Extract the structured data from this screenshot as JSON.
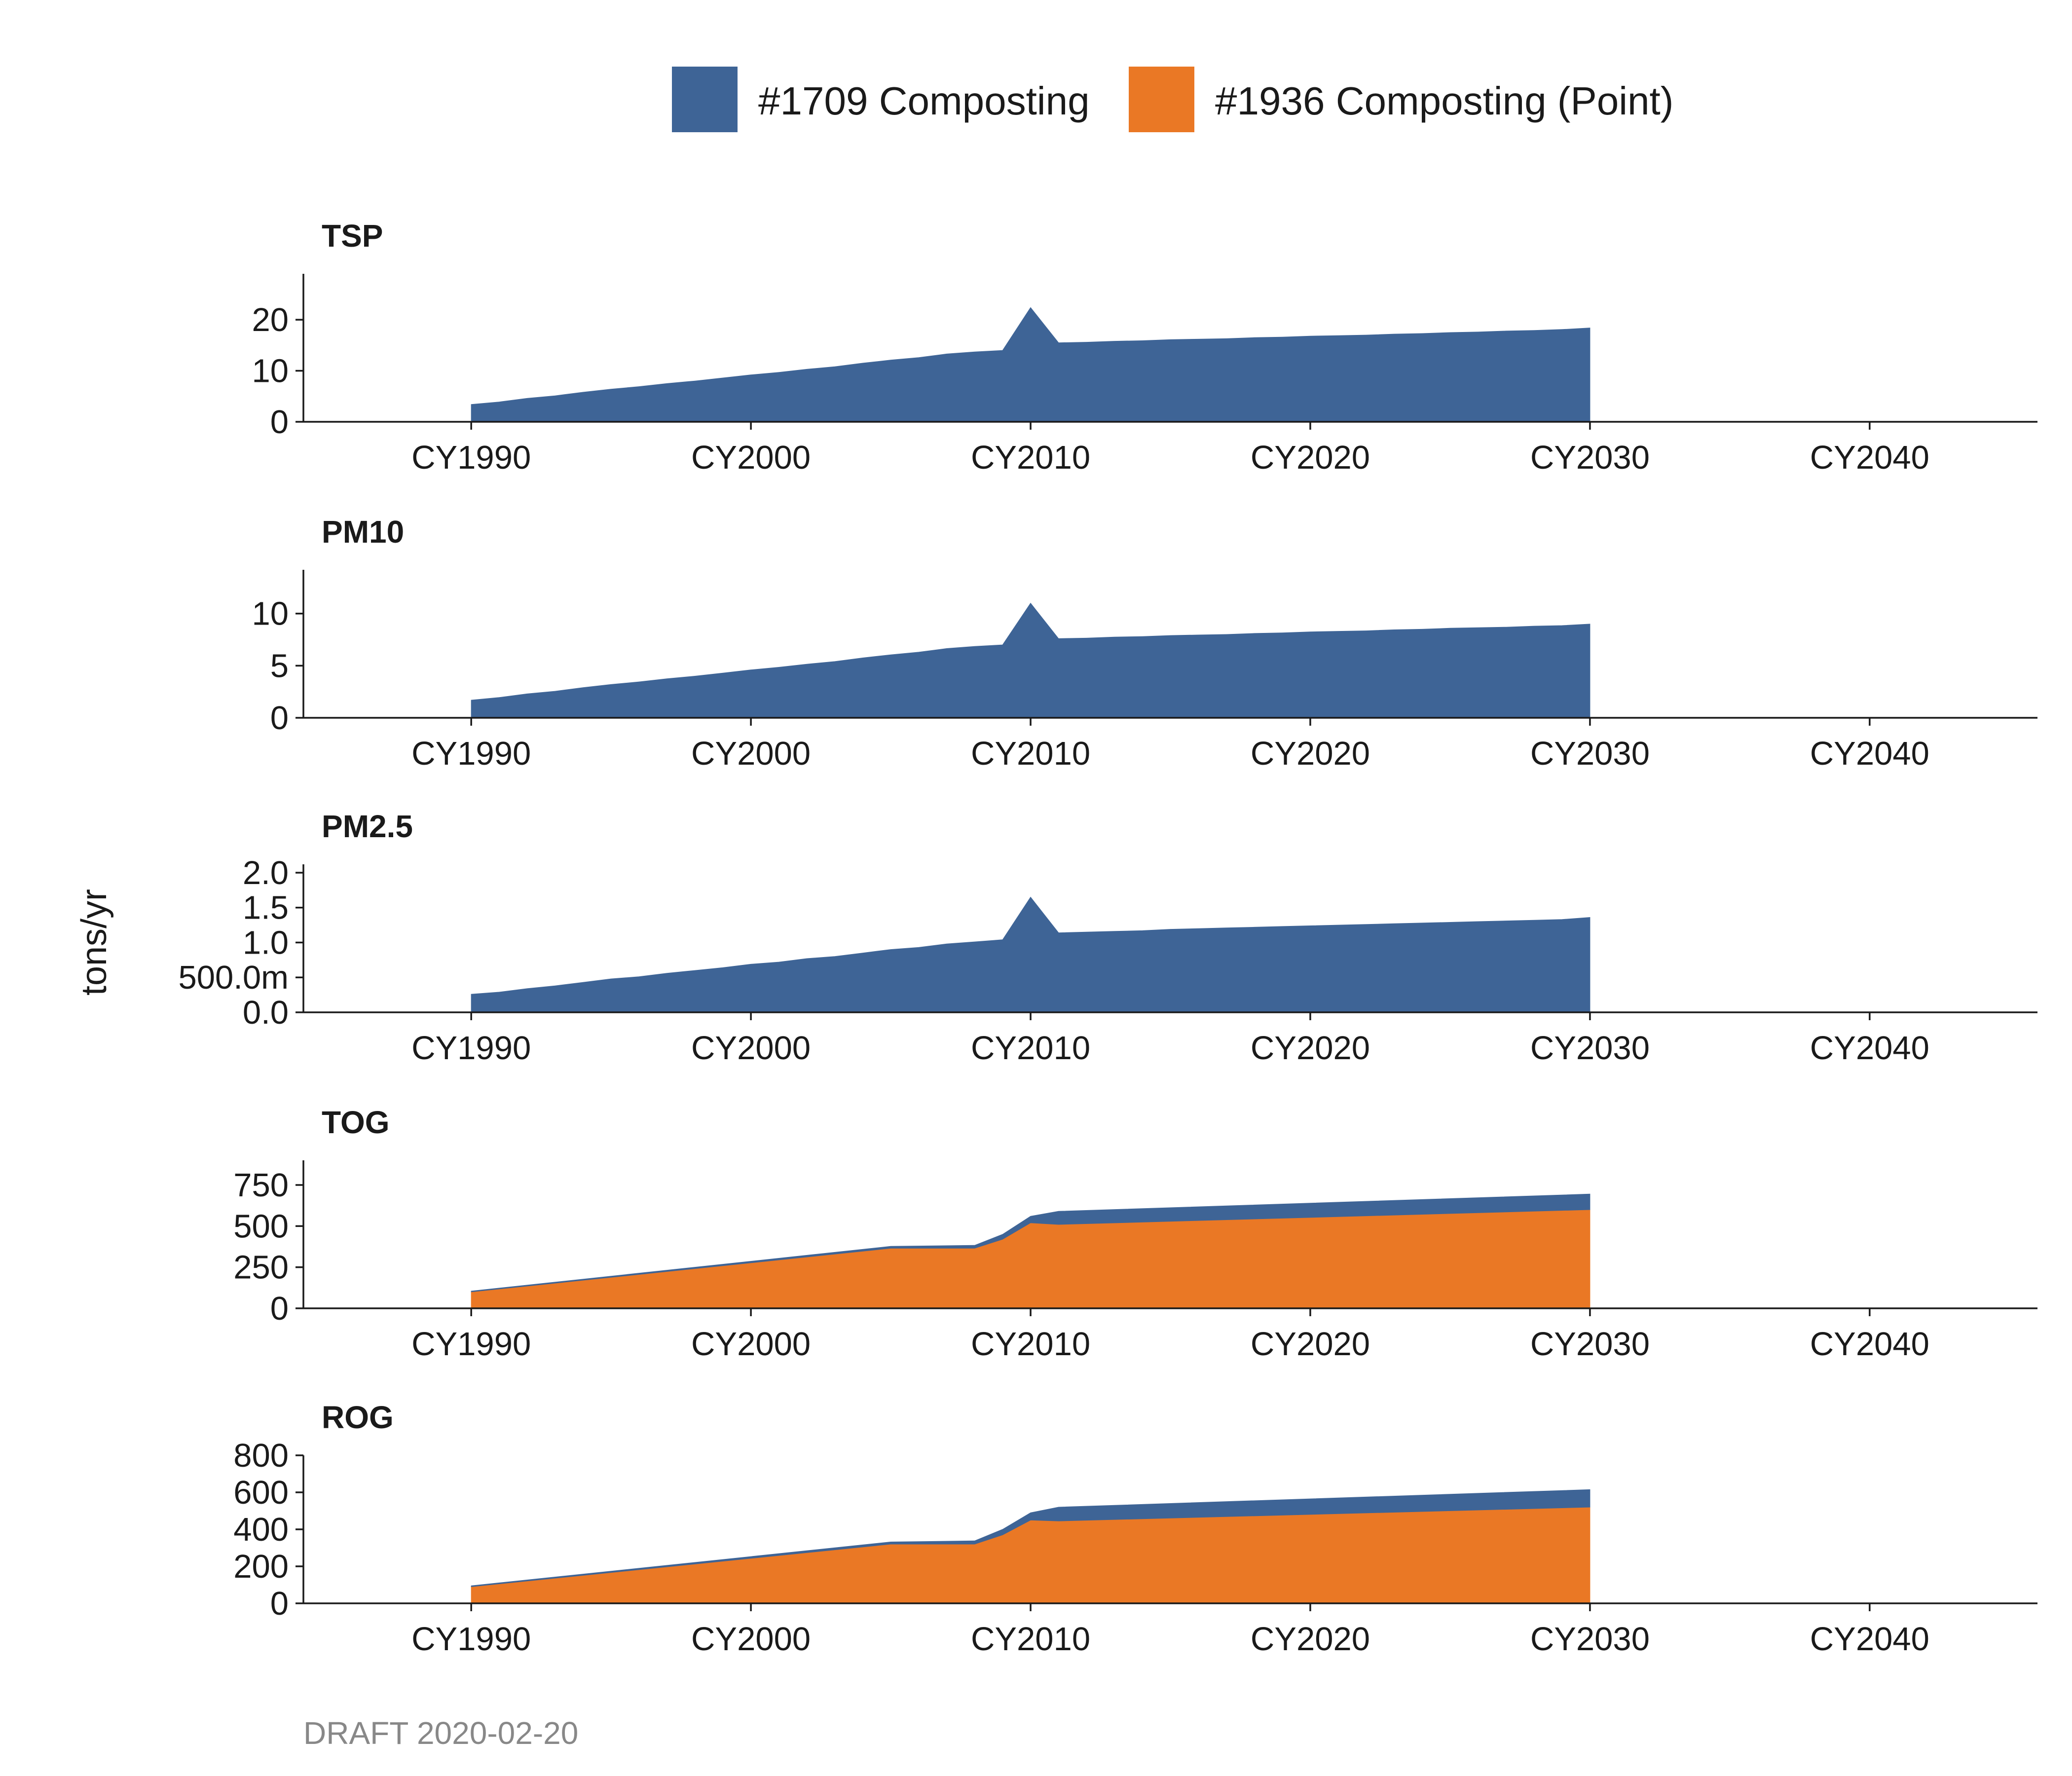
{
  "chart_data": {
    "type": "area",
    "stacked": true,
    "legend": {
      "position": "top",
      "entries": [
        {
          "name": "#1709 Composting",
          "color": "#3E6496"
        },
        {
          "name": "#1936 Composting (Point)",
          "color": "#EA7825"
        }
      ]
    },
    "ylabel": "tons/yr",
    "caption": "DRAFT 2020-02-20",
    "x_ticks": [
      {
        "value": 1990,
        "label": "CY1990"
      },
      {
        "value": 2000,
        "label": "CY2000"
      },
      {
        "value": 2010,
        "label": "CY2010"
      },
      {
        "value": 2020,
        "label": "CY2020"
      },
      {
        "value": 2030,
        "label": "CY2030"
      },
      {
        "value": 2040,
        "label": "CY2040"
      }
    ],
    "xlim": [
      1984,
      2046
    ],
    "panels": [
      {
        "title": "TSP",
        "ylim": [
          0,
          29
        ],
        "y_ticks": [
          {
            "value": 0,
            "label": "0"
          },
          {
            "value": 10,
            "label": "10"
          },
          {
            "value": 20,
            "label": "20"
          }
        ],
        "series": [
          {
            "name": "#1709 Composting",
            "x": [
              1990,
              1991,
              1992,
              1993,
              1994,
              1995,
              1996,
              1997,
              1998,
              1999,
              2000,
              2001,
              2002,
              2003,
              2004,
              2005,
              2006,
              2007,
              2008,
              2009,
              2010,
              2011,
              2012,
              2013,
              2014,
              2015,
              2016,
              2017,
              2018,
              2019,
              2020,
              2021,
              2022,
              2023,
              2024,
              2025,
              2026,
              2027,
              2028,
              2029,
              2030
            ],
            "values": [
              3.4,
              3.9,
              4.6,
              5.1,
              5.8,
              6.4,
              6.9,
              7.5,
              8.0,
              8.6,
              9.2,
              9.7,
              10.3,
              10.8,
              11.5,
              12.1,
              12.6,
              13.3,
              13.7,
              14.0,
              22.4,
              15.5,
              15.6,
              15.8,
              15.9,
              16.1,
              16.2,
              16.3,
              16.5,
              16.6,
              16.8,
              16.9,
              17.0,
              17.2,
              17.3,
              17.5,
              17.6,
              17.8,
              17.9,
              18.1,
              18.4
            ]
          },
          {
            "name": "#1936 Composting (Point)",
            "x": [
              1990,
              2030
            ],
            "values": [
              0,
              0
            ]
          }
        ]
      },
      {
        "title": "PM10",
        "ylim": [
          0,
          14.2
        ],
        "y_ticks": [
          {
            "value": 0,
            "label": "0"
          },
          {
            "value": 5,
            "label": "5"
          },
          {
            "value": 10,
            "label": "10"
          }
        ],
        "series": [
          {
            "name": "#1709 Composting",
            "x": [
              1990,
              1991,
              1992,
              1993,
              1994,
              1995,
              1996,
              1997,
              1998,
              1999,
              2000,
              2001,
              2002,
              2003,
              2004,
              2005,
              2006,
              2007,
              2008,
              2009,
              2010,
              2011,
              2012,
              2013,
              2014,
              2015,
              2016,
              2017,
              2018,
              2019,
              2020,
              2021,
              2022,
              2023,
              2024,
              2025,
              2026,
              2027,
              2028,
              2029,
              2030
            ],
            "values": [
              1.7,
              1.95,
              2.3,
              2.55,
              2.9,
              3.2,
              3.45,
              3.75,
              4.0,
              4.3,
              4.6,
              4.85,
              5.15,
              5.4,
              5.75,
              6.05,
              6.3,
              6.65,
              6.85,
              7.0,
              11.0,
              7.6,
              7.65,
              7.75,
              7.8,
              7.9,
              7.95,
              8.0,
              8.1,
              8.15,
              8.25,
              8.3,
              8.35,
              8.45,
              8.5,
              8.6,
              8.65,
              8.7,
              8.8,
              8.85,
              9.0
            ]
          },
          {
            "name": "#1936 Composting (Point)",
            "x": [
              1990,
              2030
            ],
            "values": [
              0,
              0
            ]
          }
        ]
      },
      {
        "title": "PM2.5",
        "ylim": [
          0,
          2.12
        ],
        "y_ticks": [
          {
            "value": 0,
            "label": "0.0"
          },
          {
            "value": 0.5,
            "label": "500.0m"
          },
          {
            "value": 1.0,
            "label": "1.0"
          },
          {
            "value": 1.5,
            "label": "1.5"
          },
          {
            "value": 2.0,
            "label": "2.0"
          }
        ],
        "series": [
          {
            "name": "#1709 Composting",
            "x": [
              1990,
              1991,
              1992,
              1993,
              1994,
              1995,
              1996,
              1997,
              1998,
              1999,
              2000,
              2001,
              2002,
              2003,
              2004,
              2005,
              2006,
              2007,
              2008,
              2009,
              2010,
              2011,
              2012,
              2013,
              2014,
              2015,
              2016,
              2017,
              2018,
              2019,
              2020,
              2021,
              2022,
              2023,
              2024,
              2025,
              2026,
              2027,
              2028,
              2029,
              2030
            ],
            "values": [
              0.26,
              0.29,
              0.34,
              0.38,
              0.43,
              0.48,
              0.51,
              0.56,
              0.6,
              0.64,
              0.69,
              0.72,
              0.77,
              0.8,
              0.85,
              0.9,
              0.93,
              0.98,
              1.01,
              1.04,
              1.65,
              1.14,
              1.15,
              1.16,
              1.17,
              1.19,
              1.2,
              1.21,
              1.22,
              1.23,
              1.24,
              1.25,
              1.26,
              1.27,
              1.28,
              1.29,
              1.3,
              1.31,
              1.32,
              1.33,
              1.36
            ]
          },
          {
            "name": "#1936 Composting (Point)",
            "x": [
              1990,
              2030
            ],
            "values": [
              0,
              0
            ]
          }
        ]
      },
      {
        "title": "TOG",
        "ylim": [
          0,
          900
        ],
        "y_ticks": [
          {
            "value": 0,
            "label": "0"
          },
          {
            "value": 250,
            "label": "250"
          },
          {
            "value": 500,
            "label": "500"
          },
          {
            "value": 750,
            "label": "750"
          }
        ],
        "series": [
          {
            "name": "#1709 Composting",
            "x": [
              1990,
              2005,
              2008,
              2009,
              2010,
              2011,
              2030
            ],
            "values": [
              5,
              12,
              18,
              30,
              40,
              80,
              95
            ]
          },
          {
            "name": "#1936 Composting (Point)",
            "x": [
              1990,
              2005,
              2008,
              2009,
              2010,
              2011,
              2030
            ],
            "values": [
              100,
              365,
              365,
              420,
              520,
              510,
              600
            ]
          }
        ]
      },
      {
        "title": "ROG",
        "ylim": [
          0,
          800
        ],
        "y_ticks": [
          {
            "value": 0,
            "label": "0"
          },
          {
            "value": 200,
            "label": "200"
          },
          {
            "value": 400,
            "label": "400"
          },
          {
            "value": 600,
            "label": "600"
          },
          {
            "value": 800,
            "label": "800"
          }
        ],
        "series": [
          {
            "name": "#1709 Composting",
            "x": [
              1990,
              2005,
              2008,
              2009,
              2010,
              2011,
              2030
            ],
            "values": [
              5,
              12,
              18,
              30,
              40,
              75,
              95
            ]
          },
          {
            "name": "#1936 Composting (Point)",
            "x": [
              1990,
              2005,
              2008,
              2009,
              2010,
              2011,
              2030
            ],
            "values": [
              90,
              320,
              320,
              370,
              450,
              445,
              520
            ]
          }
        ]
      }
    ]
  }
}
